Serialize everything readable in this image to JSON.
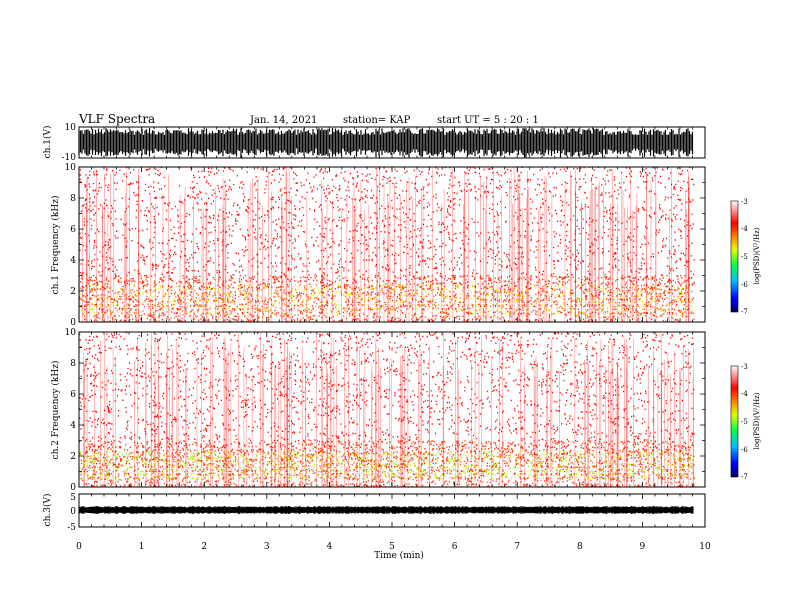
{
  "header": {
    "title": "VLF Spectra",
    "date": "Jan. 14, 2021",
    "station": "station= KAP",
    "start_ut": "start  UT =   5  : 20 : 1"
  },
  "chart_data": [
    {
      "type": "line",
      "panel": "ch1-waveform",
      "ylabel": "ch.1(V)",
      "ylim": [
        -10,
        10
      ],
      "yticks": [
        "10",
        "-10"
      ],
      "xlim": [
        0,
        10
      ]
    },
    {
      "type": "heatmap",
      "panel": "ch1-spectrogram",
      "ylabel": "ch.1 Frequency (kHz)",
      "ylim": [
        0,
        10
      ],
      "yticks": [
        "10",
        "8",
        "6",
        "4",
        "2",
        "0"
      ],
      "xlim": [
        0,
        10
      ],
      "colorbar": {
        "label": "log(PSD)(V²/Hz)",
        "ticks": [
          "-3",
          "-4",
          "-5",
          "-6",
          "-7"
        ],
        "range": [
          -7,
          -3
        ]
      },
      "bands": [
        {
          "from_khz": 0,
          "to_khz": 3,
          "color": "#ff2a00",
          "density": 0.6
        },
        {
          "from_khz": 0.4,
          "to_khz": 2.4,
          "color": "#e6f000",
          "density": 0.28
        },
        {
          "from_khz": 3,
          "to_khz": 10,
          "color": "#ff0000",
          "density": 0.2
        }
      ]
    },
    {
      "type": "heatmap",
      "panel": "ch2-spectrogram",
      "ylabel": "ch.2 Frequency (kHz)",
      "ylim": [
        0,
        10
      ],
      "yticks": [
        "10",
        "8",
        "6",
        "4",
        "2",
        "0"
      ],
      "xlim": [
        0,
        10
      ],
      "colorbar": {
        "label": "log(PSD)(V²/Hz)",
        "ticks": [
          "-3",
          "-4",
          "-5",
          "-6",
          "-7"
        ],
        "range": [
          -7,
          -3
        ]
      },
      "bands": [
        {
          "from_khz": 0,
          "to_khz": 3,
          "color": "#ff2a00",
          "density": 0.6
        },
        {
          "from_khz": 0.5,
          "to_khz": 2.3,
          "color": "#b8f000",
          "density": 0.45
        },
        {
          "from_khz": 3,
          "to_khz": 10,
          "color": "#ff0000",
          "density": 0.2
        }
      ]
    },
    {
      "type": "line",
      "panel": "ch3-waveform",
      "ylabel": "ch.3(V)",
      "ylim": [
        -5,
        5
      ],
      "yticks": [
        "5",
        "0",
        "-5"
      ],
      "xlim": [
        0,
        10
      ],
      "xlabel": "Time (min)",
      "xticks": [
        "0",
        "1",
        "2",
        "3",
        "4",
        "5",
        "6",
        "7",
        "8",
        "9",
        "10"
      ]
    }
  ]
}
